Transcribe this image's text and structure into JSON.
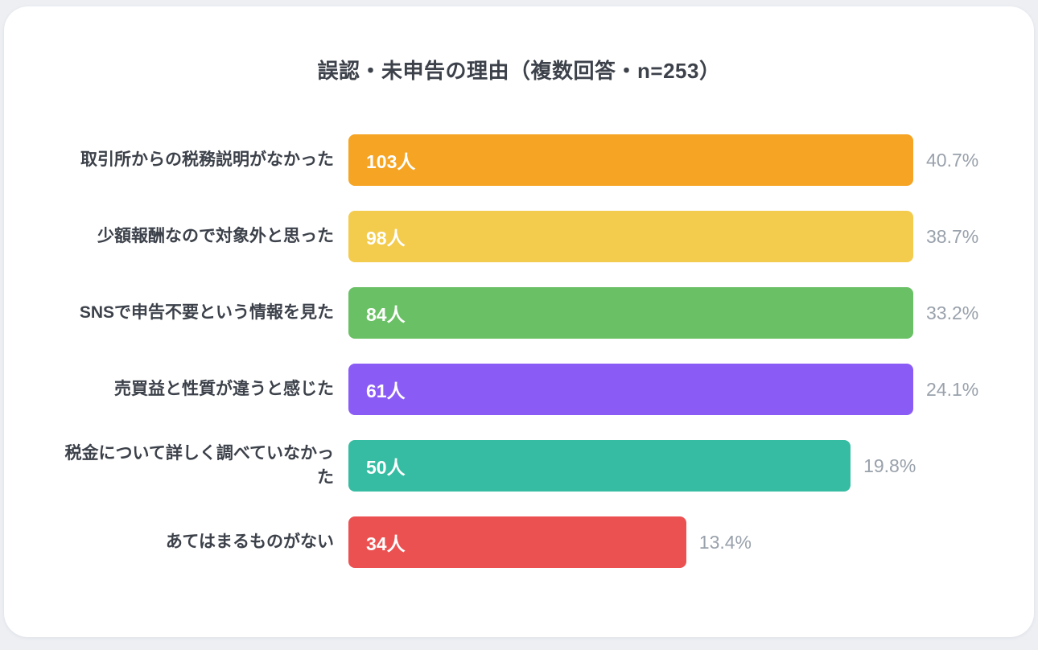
{
  "chart_data": {
    "type": "bar",
    "orientation": "horizontal",
    "title": "誤認・未申告の理由（複数回答・n=253）",
    "categories": [
      "取引所からの税務説明がなかった",
      "少額報酬なので対象外と思った",
      "SNSで申告不要という情報を見た",
      "売買益と性質が違うと感じた",
      "税金について詳しく調べていなかった",
      "あてはまるものがない"
    ],
    "values": [
      103,
      98,
      84,
      61,
      50,
      34
    ],
    "value_labels": [
      "103人",
      "98人",
      "84人",
      "61人",
      "50人",
      "34人"
    ],
    "percent_labels": [
      "40.7%",
      "38.7%",
      "33.2%",
      "24.1%",
      "19.8%",
      "13.4%"
    ],
    "bar_colors": [
      "#F5A423",
      "#F3CB4D",
      "#6AC065",
      "#8A5CF5",
      "#36BCA2",
      "#EC5152"
    ],
    "bar_width_pct": [
      100,
      100,
      100,
      100,
      88.9,
      59.8
    ],
    "legend": "none",
    "grid": false
  },
  "colors": {
    "background": "#EDEFF3",
    "card": "#FFFFFF",
    "title_text": "#3C414A",
    "label_text": "#3C414A",
    "percent_text": "#99A1AB"
  }
}
